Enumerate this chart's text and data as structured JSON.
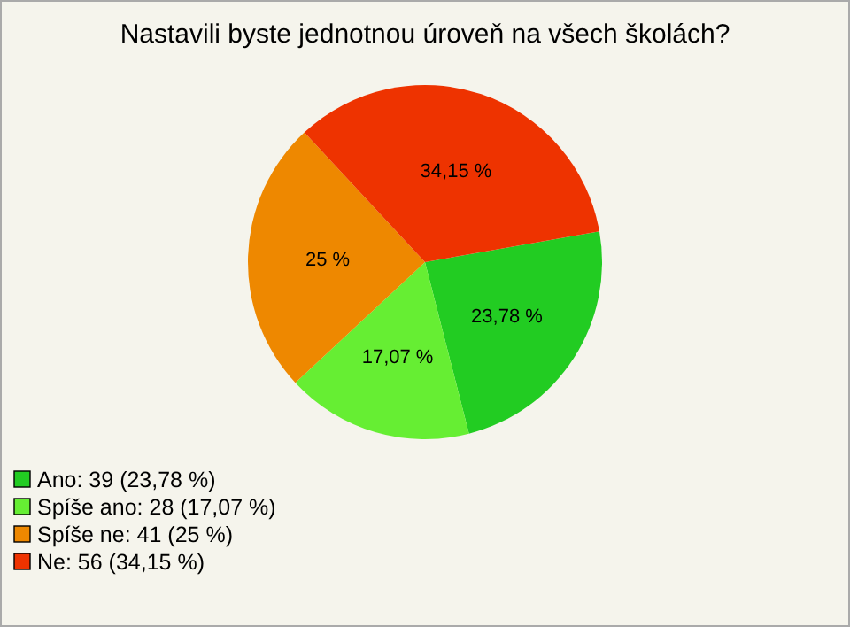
{
  "chart_data": {
    "type": "pie",
    "title": "Nastavili byste jednotnou úroveň na všech školách?",
    "categories": [
      "Ano: 39 (23,78 %)",
      "Spíše ano: 28 (17,07 %)",
      "Spíše ne: 41 (25 %)",
      "Ne: 56 (34,15 %)"
    ],
    "values": [
      23.78,
      17.07,
      25,
      34.15
    ],
    "value_labels": [
      "23,78 %",
      "17,07 %",
      "25 %",
      "34,15 %"
    ],
    "colors": [
      "#22cc22",
      "#66ee33",
      "#ee8800",
      "#ee3300"
    ],
    "legend": "bottom left"
  }
}
